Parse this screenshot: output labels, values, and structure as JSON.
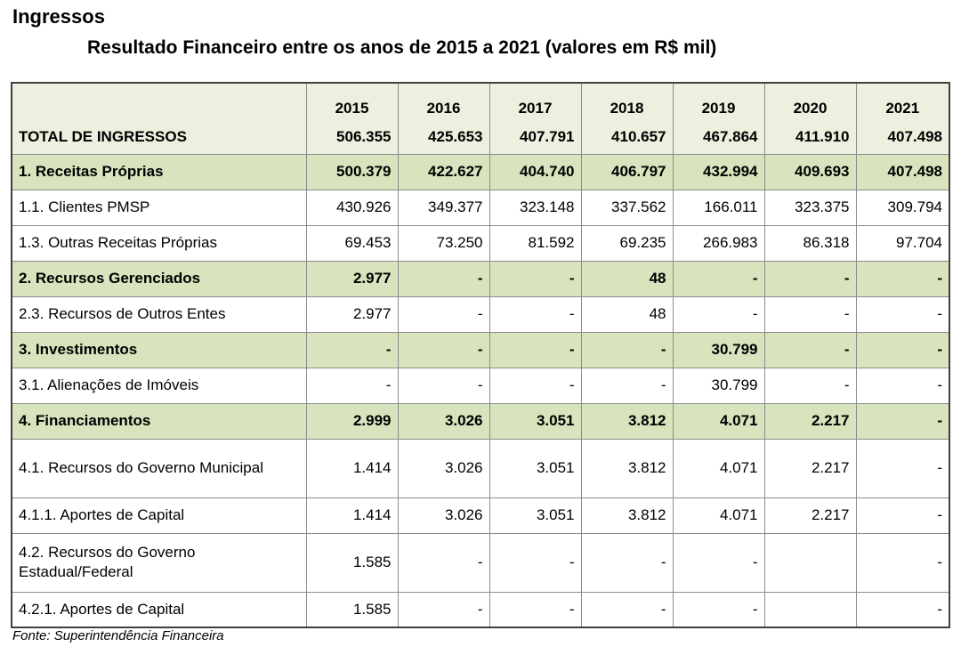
{
  "heading": "Ingressos",
  "subtitle": "Resultado Financeiro entre os anos de 2015 a 2021 (valores em R$ mil)",
  "table": {
    "years": [
      "2015",
      "2016",
      "2017",
      "2018",
      "2019",
      "2020",
      "2021"
    ],
    "rows": [
      {
        "label": "TOTAL DE INGRESSOS",
        "type": "total",
        "values": [
          "506.355",
          "425.653",
          "407.791",
          "410.657",
          "467.864",
          "411.910",
          "407.498"
        ]
      },
      {
        "label": "1. Receitas Próprias",
        "type": "section",
        "values": [
          "500.379",
          "422.627",
          "404.740",
          "406.797",
          "432.994",
          "409.693",
          "407.498"
        ]
      },
      {
        "label": "1.1. Clientes PMSP",
        "type": "plain",
        "values": [
          "430.926",
          "349.377",
          "323.148",
          "337.562",
          "166.011",
          "323.375",
          "309.794"
        ]
      },
      {
        "label": "1.3. Outras Receitas Próprias",
        "type": "plain",
        "values": [
          "69.453",
          "73.250",
          "81.592",
          "69.235",
          "266.983",
          "86.318",
          "97.704"
        ]
      },
      {
        "label": "2. Recursos Gerenciados",
        "type": "section",
        "values": [
          "2.977",
          "-",
          "-",
          "48",
          "-",
          "-",
          "-"
        ]
      },
      {
        "label": "2.3. Recursos de Outros Entes",
        "type": "plain",
        "values": [
          "2.977",
          "-",
          "-",
          "48",
          "-",
          "-",
          "-"
        ]
      },
      {
        "label": "3. Investimentos",
        "type": "section",
        "values": [
          "-",
          "-",
          "-",
          "-",
          "30.799",
          "-",
          "-"
        ]
      },
      {
        "label": "3.1. Alienações de Imóveis",
        "type": "plain",
        "values": [
          "-",
          "-",
          "-",
          "-",
          "30.799",
          "-",
          "-"
        ]
      },
      {
        "label": "4. Financiamentos",
        "type": "section",
        "values": [
          "2.999",
          "3.026",
          "3.051",
          "3.812",
          "4.071",
          "2.217",
          "-"
        ]
      },
      {
        "label": "4.1. Recursos do Governo Municipal",
        "type": "plain tall",
        "values": [
          "1.414",
          "3.026",
          "3.051",
          "3.812",
          "4.071",
          "2.217",
          "-"
        ]
      },
      {
        "label": "4.1.1. Aportes de Capital",
        "type": "plain",
        "values": [
          "1.414",
          "3.026",
          "3.051",
          "3.812",
          "4.071",
          "2.217",
          "-"
        ]
      },
      {
        "label": "4.2. Recursos do Governo Estadual/Federal",
        "type": "plain tall",
        "values": [
          "1.585",
          "-",
          "-",
          "-",
          "-",
          "",
          "-"
        ]
      },
      {
        "label": "4.2.1. Aportes de Capital",
        "type": "plain",
        "values": [
          "1.585",
          "-",
          "-",
          "-",
          "-",
          "",
          "-"
        ]
      }
    ]
  },
  "source": "Fonte: Superintendência Financeira"
}
